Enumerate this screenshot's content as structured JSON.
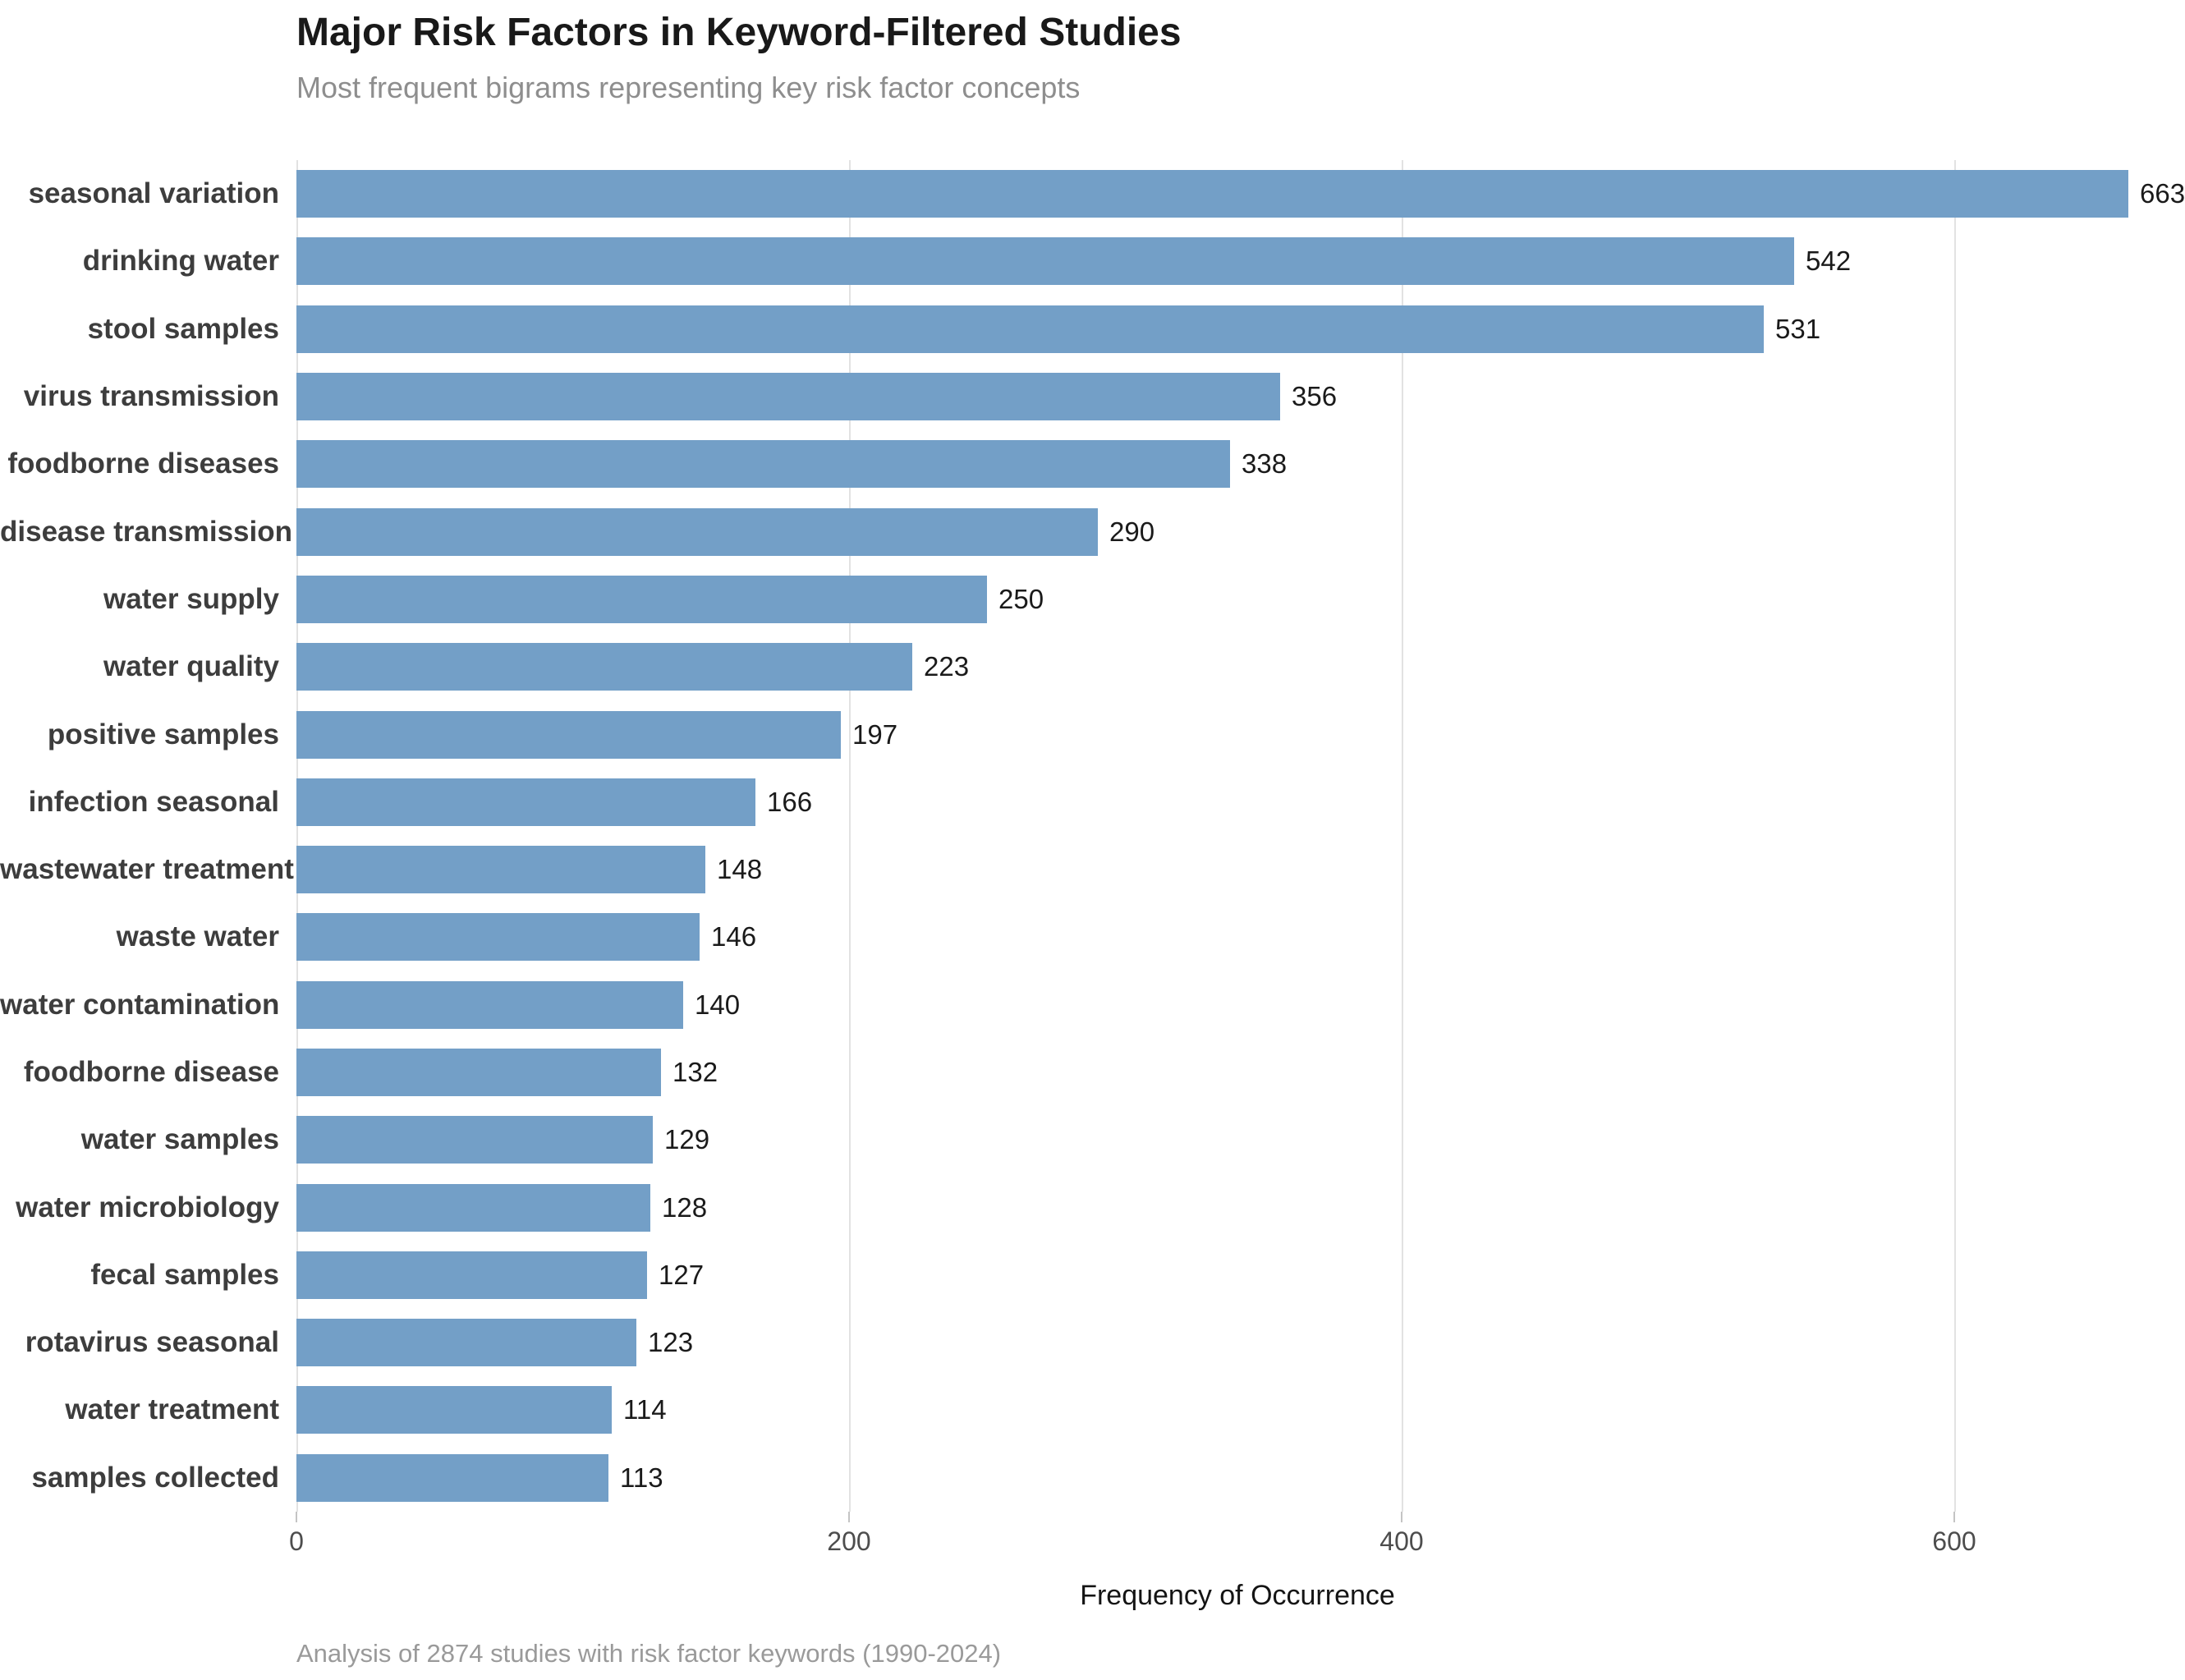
{
  "chart_data": {
    "type": "bar",
    "orientation": "horizontal",
    "title": "Major Risk Factors in Keyword-Filtered Studies",
    "subtitle": "Most frequent bigrams representing key risk factor concepts",
    "xlabel": "Frequency of Occurrence",
    "caption": "Analysis of 2874 studies with risk factor keywords (1990-2024)",
    "categories": [
      "seasonal variation",
      "drinking water",
      "stool samples",
      "virus transmission",
      "foodborne diseases",
      "disease transmission",
      "water supply",
      "water quality",
      "positive samples",
      "infection seasonal",
      "wastewater treatment",
      "waste water",
      "water contamination",
      "foodborne disease",
      "water samples",
      "water microbiology",
      "fecal samples",
      "rotavirus seasonal",
      "water treatment",
      "samples collected"
    ],
    "values": [
      663,
      542,
      531,
      356,
      338,
      290,
      250,
      223,
      197,
      166,
      148,
      146,
      140,
      132,
      129,
      128,
      127,
      123,
      114,
      113
    ],
    "xticks": [
      0,
      200,
      400,
      600
    ],
    "xlim": [
      0,
      680
    ],
    "grid": true,
    "legend": "none",
    "value_labels": true,
    "colors": {
      "bar": "#739fc7",
      "gridline": "#e2e2e2",
      "category_label": "#3d3d3d",
      "value_label": "#1a1a1a",
      "subtitle_text": "#8e8e8e",
      "caption_text": "#9a9a9a"
    }
  }
}
